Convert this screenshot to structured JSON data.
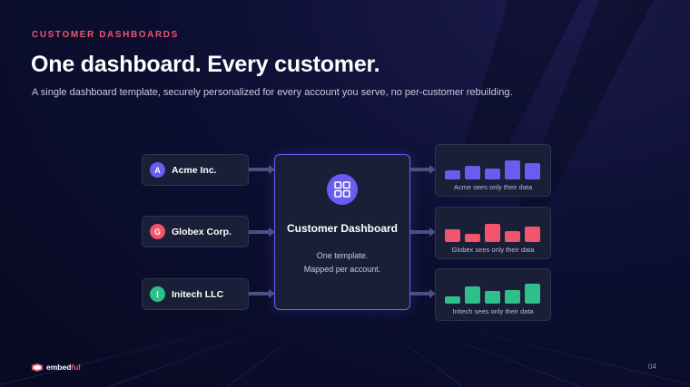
{
  "eyebrow": "CUSTOMER DASHBOARDS",
  "title": "One dashboard. Every customer.",
  "subtitle": "A single dashboard template, securely personalized for every account you serve, no per-customer rebuilding.",
  "customers": [
    {
      "initial": "A",
      "name": "Acme Inc.",
      "color": "#6b5cf0"
    },
    {
      "initial": "G",
      "name": "Globex Corp.",
      "color": "#f2546a"
    },
    {
      "initial": "I",
      "name": "Initech LLC",
      "color": "#2fbf8a"
    }
  ],
  "dashboard": {
    "icon": "grid-icon",
    "title": "Customer Dashboard",
    "line1": "One template.",
    "line2": "Mapped per account.",
    "accent": "#6b5cf0"
  },
  "outputs": [
    {
      "caption": "Acme sees only their data",
      "color": "#6b5cf0",
      "bars": [
        0.45,
        0.7,
        0.55,
        0.95,
        0.8
      ]
    },
    {
      "caption": "Globex sees only their data",
      "color": "#f2546a",
      "bars": [
        0.65,
        0.4,
        0.9,
        0.55,
        0.75
      ]
    },
    {
      "caption": "Initech sees only their data",
      "color": "#2fbf8a",
      "bars": [
        0.35,
        0.85,
        0.65,
        0.7,
        1.0
      ]
    }
  ],
  "footer": {
    "logo_main": "embed",
    "logo_accent": "ful",
    "page_number": "04"
  }
}
